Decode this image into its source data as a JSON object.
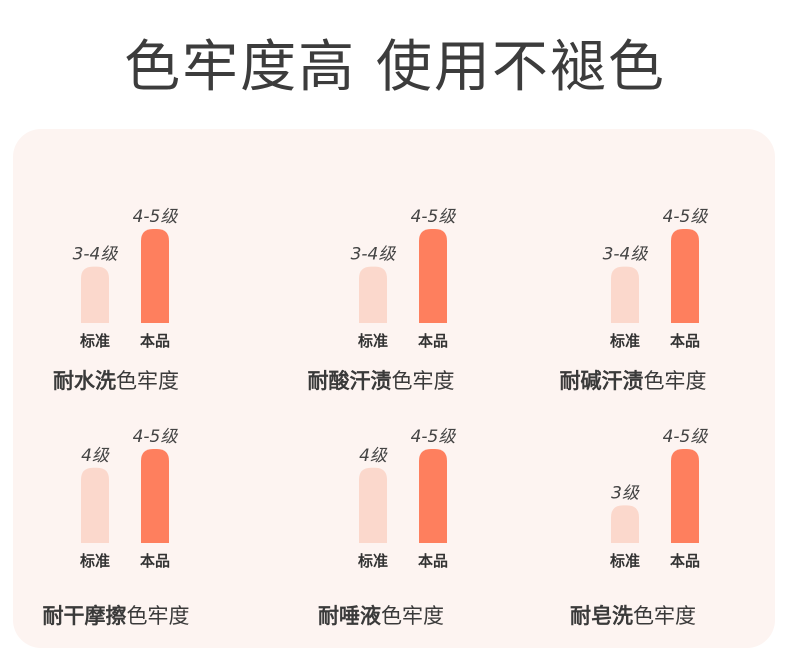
{
  "header": {
    "title": "色牢度高 使用不褪色"
  },
  "colors": {
    "standard_bar": "#fbd8cc",
    "product_bar": "#fe7f5e",
    "panel_bg": "#fdf4f1"
  },
  "chart_data": [
    {
      "type": "bar",
      "categories": [
        "标准",
        "本品"
      ],
      "values": [
        3.5,
        4.5
      ],
      "data_labels": [
        "3-4级",
        "4-5级"
      ],
      "caption_bold": "耐水洗",
      "caption_rest": "色牢度"
    },
    {
      "type": "bar",
      "categories": [
        "标准",
        "本品"
      ],
      "values": [
        3.5,
        4.5
      ],
      "data_labels": [
        "3-4级",
        "4-5级"
      ],
      "caption_bold": "耐酸汗渍",
      "caption_rest": "色牢度"
    },
    {
      "type": "bar",
      "categories": [
        "标准",
        "本品"
      ],
      "values": [
        3.5,
        4.5
      ],
      "data_labels": [
        "3-4级",
        "4-5级"
      ],
      "caption_bold": "耐碱汗渍",
      "caption_rest": "色牢度"
    },
    {
      "type": "bar",
      "categories": [
        "标准",
        "本品"
      ],
      "values": [
        4,
        4.5
      ],
      "data_labels": [
        "4级",
        "4-5级"
      ],
      "caption_bold": "耐干摩擦",
      "caption_rest": "色牢度"
    },
    {
      "type": "bar",
      "categories": [
        "标准",
        "本品"
      ],
      "values": [
        4,
        4.5
      ],
      "data_labels": [
        "4级",
        "4-5级"
      ],
      "caption_bold": "耐唾液",
      "caption_rest": "色牢度"
    },
    {
      "type": "bar",
      "categories": [
        "标准",
        "本品"
      ],
      "values": [
        3,
        4.5
      ],
      "data_labels": [
        "3级",
        "4-5级"
      ],
      "caption_bold": "耐皂洗",
      "caption_rest": "色牢度"
    }
  ]
}
